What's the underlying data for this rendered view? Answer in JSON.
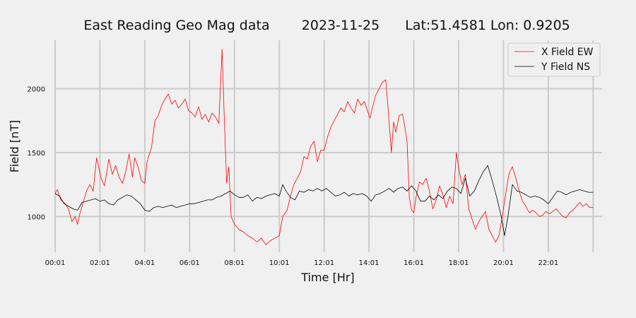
{
  "chart_data": {
    "type": "line",
    "title": {
      "station": "East Reading Geo Mag data",
      "date": "2023-11-25",
      "location": "Lat:51.4581  Lon: 0.9205"
    },
    "xlabel": "Time  [Hr]",
    "ylabel": "Field  [nT]",
    "xlim": [
      0,
      24.4
    ],
    "ylim": [
      720,
      2380
    ],
    "grid": true,
    "legend_position": "top-right",
    "x_ticks": [
      {
        "x": 0,
        "label": "00:01"
      },
      {
        "x": 2,
        "label": "02:01"
      },
      {
        "x": 4,
        "label": "04:01"
      },
      {
        "x": 6,
        "label": "06:01"
      },
      {
        "x": 8,
        "label": "08:01"
      },
      {
        "x": 10,
        "label": "10:01"
      },
      {
        "x": 12,
        "label": "12:01"
      },
      {
        "x": 14,
        "label": "14:01"
      },
      {
        "x": 16,
        "label": "16:01"
      },
      {
        "x": 18,
        "label": "18:01"
      },
      {
        "x": 20,
        "label": "20:01"
      },
      {
        "x": 22,
        "label": "22:01"
      },
      {
        "x": 24,
        "label": ""
      }
    ],
    "y_ticks": [
      {
        "y": 1000,
        "label": "1000"
      },
      {
        "y": 1500,
        "label": "1500"
      },
      {
        "y": 2000,
        "label": "2000"
      }
    ],
    "series": [
      {
        "name": "X Field EW",
        "color": "#ff0000",
        "points": [
          [
            0.0,
            1180
          ],
          [
            0.1,
            1210
          ],
          [
            0.25,
            1130
          ],
          [
            0.45,
            1100
          ],
          [
            0.6,
            1060
          ],
          [
            0.75,
            960
          ],
          [
            0.9,
            1000
          ],
          [
            1.0,
            940
          ],
          [
            1.1,
            1020
          ],
          [
            1.25,
            1110
          ],
          [
            1.4,
            1200
          ],
          [
            1.55,
            1250
          ],
          [
            1.7,
            1200
          ],
          [
            1.85,
            1460
          ],
          [
            1.95,
            1380
          ],
          [
            2.05,
            1300
          ],
          [
            2.2,
            1240
          ],
          [
            2.4,
            1450
          ],
          [
            2.55,
            1330
          ],
          [
            2.7,
            1400
          ],
          [
            2.85,
            1310
          ],
          [
            3.0,
            1260
          ],
          [
            3.15,
            1350
          ],
          [
            3.3,
            1490
          ],
          [
            3.45,
            1310
          ],
          [
            3.55,
            1460
          ],
          [
            3.7,
            1390
          ],
          [
            3.85,
            1280
          ],
          [
            4.0,
            1260
          ],
          [
            4.1,
            1430
          ],
          [
            4.3,
            1540
          ],
          [
            4.45,
            1750
          ],
          [
            4.6,
            1790
          ],
          [
            4.75,
            1870
          ],
          [
            4.9,
            1920
          ],
          [
            5.05,
            1960
          ],
          [
            5.2,
            1880
          ],
          [
            5.35,
            1910
          ],
          [
            5.5,
            1850
          ],
          [
            5.65,
            1880
          ],
          [
            5.8,
            1920
          ],
          [
            5.95,
            1830
          ],
          [
            6.1,
            1810
          ],
          [
            6.25,
            1780
          ],
          [
            6.4,
            1860
          ],
          [
            6.55,
            1760
          ],
          [
            6.7,
            1800
          ],
          [
            6.85,
            1740
          ],
          [
            7.0,
            1810
          ],
          [
            7.15,
            1780
          ],
          [
            7.3,
            1730
          ],
          [
            7.45,
            2310
          ],
          [
            7.55,
            1750
          ],
          [
            7.65,
            1260
          ],
          [
            7.75,
            1390
          ],
          [
            7.85,
            1000
          ],
          [
            8.0,
            940
          ],
          [
            8.2,
            900
          ],
          [
            8.4,
            880
          ],
          [
            8.6,
            850
          ],
          [
            8.8,
            830
          ],
          [
            9.0,
            800
          ],
          [
            9.2,
            830
          ],
          [
            9.4,
            780
          ],
          [
            9.6,
            810
          ],
          [
            9.8,
            830
          ],
          [
            10.0,
            850
          ],
          [
            10.15,
            1000
          ],
          [
            10.35,
            1050
          ],
          [
            10.5,
            1160
          ],
          [
            10.65,
            1250
          ],
          [
            10.8,
            1300
          ],
          [
            10.95,
            1350
          ],
          [
            11.1,
            1470
          ],
          [
            11.25,
            1450
          ],
          [
            11.4,
            1550
          ],
          [
            11.55,
            1590
          ],
          [
            11.7,
            1430
          ],
          [
            11.85,
            1520
          ],
          [
            12.0,
            1520
          ],
          [
            12.15,
            1620
          ],
          [
            12.3,
            1700
          ],
          [
            12.45,
            1750
          ],
          [
            12.6,
            1800
          ],
          [
            12.75,
            1850
          ],
          [
            12.9,
            1820
          ],
          [
            13.05,
            1900
          ],
          [
            13.2,
            1850
          ],
          [
            13.35,
            1810
          ],
          [
            13.5,
            1920
          ],
          [
            13.65,
            1870
          ],
          [
            13.8,
            1900
          ],
          [
            13.95,
            1820
          ],
          [
            14.05,
            1770
          ],
          [
            14.15,
            1850
          ],
          [
            14.3,
            1950
          ],
          [
            14.45,
            2000
          ],
          [
            14.6,
            2050
          ],
          [
            14.75,
            2070
          ],
          [
            14.85,
            1850
          ],
          [
            15.0,
            1500
          ],
          [
            15.1,
            1740
          ],
          [
            15.2,
            1660
          ],
          [
            15.35,
            1790
          ],
          [
            15.5,
            1800
          ],
          [
            15.6,
            1700
          ],
          [
            15.7,
            1590
          ],
          [
            15.8,
            1150
          ],
          [
            15.9,
            1050
          ],
          [
            16.0,
            1030
          ],
          [
            16.1,
            1150
          ],
          [
            16.25,
            1270
          ],
          [
            16.4,
            1250
          ],
          [
            16.55,
            1300
          ],
          [
            16.7,
            1200
          ],
          [
            16.85,
            1060
          ],
          [
            17.0,
            1130
          ],
          [
            17.15,
            1240
          ],
          [
            17.3,
            1170
          ],
          [
            17.45,
            1070
          ],
          [
            17.6,
            1160
          ],
          [
            17.75,
            1100
          ],
          [
            17.9,
            1500
          ],
          [
            18.0,
            1380
          ],
          [
            18.15,
            1250
          ],
          [
            18.3,
            1330
          ],
          [
            18.45,
            1060
          ],
          [
            18.6,
            980
          ],
          [
            18.75,
            900
          ],
          [
            18.9,
            960
          ],
          [
            19.05,
            1000
          ],
          [
            19.2,
            1040
          ],
          [
            19.35,
            900
          ],
          [
            19.5,
            850
          ],
          [
            19.65,
            800
          ],
          [
            19.8,
            850
          ],
          [
            19.95,
            1000
          ],
          [
            20.1,
            1180
          ],
          [
            20.25,
            1340
          ],
          [
            20.4,
            1390
          ],
          [
            20.55,
            1300
          ],
          [
            20.7,
            1200
          ],
          [
            20.85,
            1120
          ],
          [
            21.0,
            1080
          ],
          [
            21.15,
            1030
          ],
          [
            21.3,
            1050
          ],
          [
            21.45,
            1030
          ],
          [
            21.6,
            1000
          ],
          [
            21.75,
            1010
          ],
          [
            21.9,
            1040
          ],
          [
            22.05,
            1020
          ],
          [
            22.2,
            1040
          ],
          [
            22.35,
            1060
          ],
          [
            22.5,
            1030
          ],
          [
            22.65,
            1000
          ],
          [
            22.8,
            990
          ],
          [
            22.95,
            1030
          ],
          [
            23.1,
            1050
          ],
          [
            23.25,
            1080
          ],
          [
            23.4,
            1110
          ],
          [
            23.55,
            1080
          ],
          [
            23.7,
            1100
          ],
          [
            23.85,
            1070
          ],
          [
            24.0,
            1070
          ]
        ]
      },
      {
        "name": "Y Field NS",
        "color": "#000000",
        "points": [
          [
            0.0,
            1180
          ],
          [
            0.2,
            1160
          ],
          [
            0.4,
            1100
          ],
          [
            0.6,
            1080
          ],
          [
            0.8,
            1060
          ],
          [
            1.0,
            1050
          ],
          [
            1.2,
            1110
          ],
          [
            1.4,
            1120
          ],
          [
            1.6,
            1130
          ],
          [
            1.8,
            1140
          ],
          [
            2.0,
            1120
          ],
          [
            2.2,
            1130
          ],
          [
            2.4,
            1100
          ],
          [
            2.6,
            1090
          ],
          [
            2.8,
            1130
          ],
          [
            3.0,
            1150
          ],
          [
            3.2,
            1170
          ],
          [
            3.4,
            1160
          ],
          [
            3.6,
            1130
          ],
          [
            3.8,
            1100
          ],
          [
            4.0,
            1050
          ],
          [
            4.2,
            1040
          ],
          [
            4.4,
            1070
          ],
          [
            4.6,
            1080
          ],
          [
            4.8,
            1070
          ],
          [
            5.0,
            1080
          ],
          [
            5.2,
            1090
          ],
          [
            5.4,
            1070
          ],
          [
            5.6,
            1080
          ],
          [
            5.8,
            1090
          ],
          [
            6.0,
            1100
          ],
          [
            6.2,
            1100
          ],
          [
            6.4,
            1110
          ],
          [
            6.6,
            1120
          ],
          [
            6.8,
            1130
          ],
          [
            7.0,
            1130
          ],
          [
            7.2,
            1150
          ],
          [
            7.4,
            1160
          ],
          [
            7.6,
            1180
          ],
          [
            7.8,
            1200
          ],
          [
            8.0,
            1170
          ],
          [
            8.2,
            1150
          ],
          [
            8.4,
            1150
          ],
          [
            8.6,
            1170
          ],
          [
            8.8,
            1120
          ],
          [
            9.0,
            1150
          ],
          [
            9.2,
            1140
          ],
          [
            9.4,
            1160
          ],
          [
            9.6,
            1170
          ],
          [
            9.8,
            1180
          ],
          [
            10.0,
            1160
          ],
          [
            10.15,
            1250
          ],
          [
            10.3,
            1200
          ],
          [
            10.5,
            1150
          ],
          [
            10.7,
            1130
          ],
          [
            10.9,
            1200
          ],
          [
            11.1,
            1190
          ],
          [
            11.3,
            1210
          ],
          [
            11.5,
            1200
          ],
          [
            11.7,
            1220
          ],
          [
            11.9,
            1200
          ],
          [
            12.1,
            1220
          ],
          [
            12.3,
            1190
          ],
          [
            12.5,
            1160
          ],
          [
            12.7,
            1170
          ],
          [
            12.9,
            1190
          ],
          [
            13.1,
            1160
          ],
          [
            13.3,
            1180
          ],
          [
            13.5,
            1170
          ],
          [
            13.7,
            1180
          ],
          [
            13.9,
            1160
          ],
          [
            14.1,
            1120
          ],
          [
            14.3,
            1170
          ],
          [
            14.5,
            1180
          ],
          [
            14.7,
            1200
          ],
          [
            14.9,
            1220
          ],
          [
            15.1,
            1190
          ],
          [
            15.3,
            1220
          ],
          [
            15.5,
            1230
          ],
          [
            15.7,
            1200
          ],
          [
            15.9,
            1240
          ],
          [
            16.1,
            1200
          ],
          [
            16.3,
            1120
          ],
          [
            16.5,
            1120
          ],
          [
            16.7,
            1160
          ],
          [
            16.9,
            1130
          ],
          [
            17.1,
            1170
          ],
          [
            17.3,
            1140
          ],
          [
            17.5,
            1200
          ],
          [
            17.7,
            1230
          ],
          [
            17.9,
            1220
          ],
          [
            18.1,
            1180
          ],
          [
            18.3,
            1300
          ],
          [
            18.5,
            1160
          ],
          [
            18.7,
            1200
          ],
          [
            18.9,
            1280
          ],
          [
            19.1,
            1350
          ],
          [
            19.3,
            1400
          ],
          [
            19.5,
            1280
          ],
          [
            19.7,
            1150
          ],
          [
            19.9,
            1000
          ],
          [
            20.05,
            850
          ],
          [
            20.2,
            1000
          ],
          [
            20.4,
            1250
          ],
          [
            20.6,
            1200
          ],
          [
            20.8,
            1190
          ],
          [
            21.0,
            1170
          ],
          [
            21.2,
            1150
          ],
          [
            21.4,
            1160
          ],
          [
            21.6,
            1150
          ],
          [
            21.8,
            1130
          ],
          [
            22.0,
            1100
          ],
          [
            22.2,
            1150
          ],
          [
            22.4,
            1200
          ],
          [
            22.6,
            1190
          ],
          [
            22.8,
            1170
          ],
          [
            23.0,
            1190
          ],
          [
            23.2,
            1200
          ],
          [
            23.4,
            1210
          ],
          [
            23.6,
            1200
          ],
          [
            23.8,
            1190
          ],
          [
            24.0,
            1190
          ]
        ]
      }
    ]
  }
}
